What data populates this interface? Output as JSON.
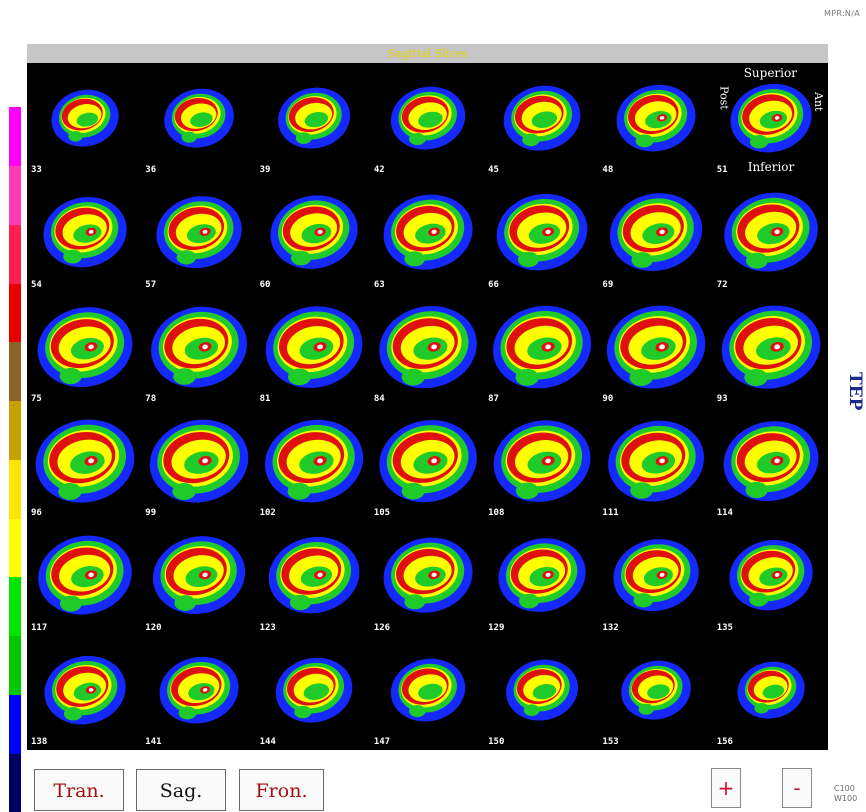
{
  "corner_label": "MPR:N/A",
  "title": "Sagittal Slices",
  "side_label": "TEP",
  "orientation": {
    "superior": "Superior",
    "inferior": "Inferior",
    "posterior": "Post",
    "anterior": "Ant"
  },
  "slices": [
    33,
    36,
    39,
    42,
    45,
    48,
    51,
    54,
    57,
    60,
    63,
    66,
    69,
    72,
    75,
    78,
    81,
    84,
    87,
    90,
    93,
    96,
    99,
    102,
    105,
    108,
    111,
    114,
    117,
    120,
    123,
    126,
    129,
    132,
    135,
    138,
    141,
    144,
    147,
    150,
    153,
    156
  ],
  "color_scale": [
    "#000064",
    "#0000ff",
    "#00c800",
    "#00e600",
    "#ffff00",
    "#ffe600",
    "#c8a000",
    "#8c6428",
    "#e60000",
    "#ff1e50",
    "#ff3cb4",
    "#ff00ff"
  ],
  "buttons": {
    "tran": "Tran.",
    "sag": "Sag.",
    "fron": "Fron.",
    "zoom_in": "+",
    "zoom_out": "-"
  },
  "window_level": {
    "c": "C100",
    "w": "W100"
  },
  "colors": {
    "button_red": "#a01010",
    "title_yellow": "#e3d200",
    "tep_blue": "#1c2a8a"
  }
}
